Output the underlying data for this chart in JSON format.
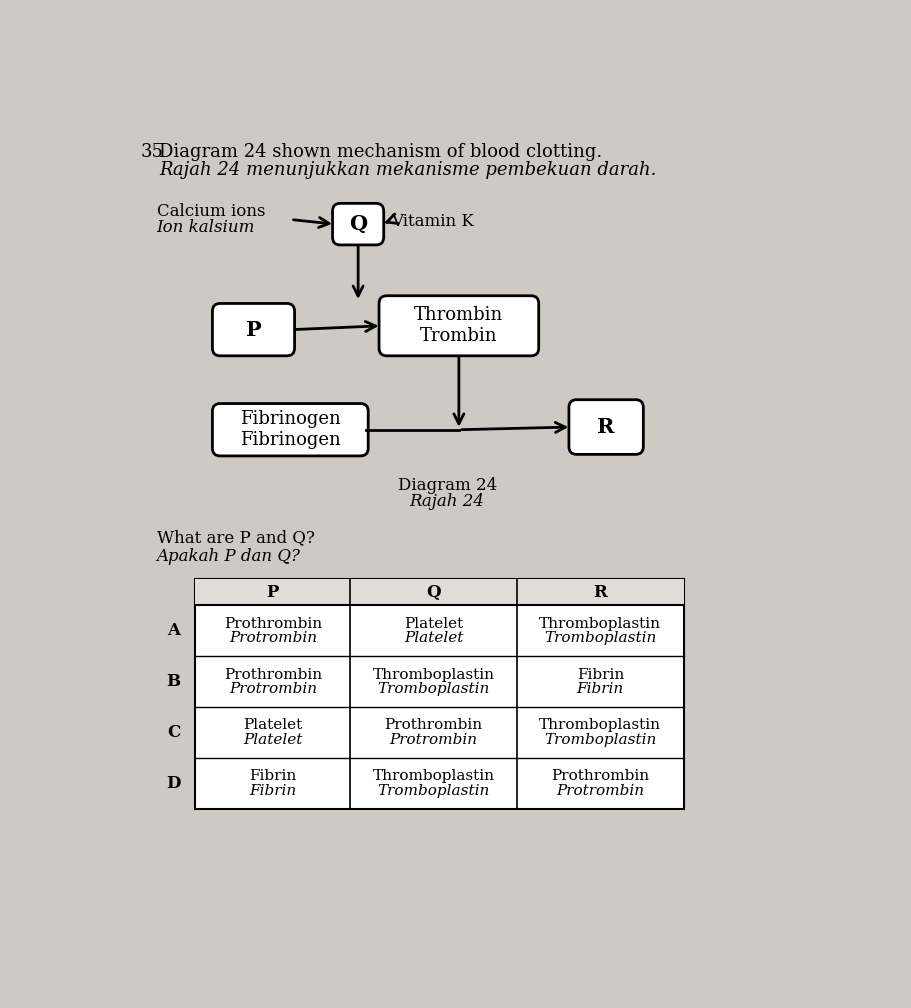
{
  "bg_color": "#cccac3",
  "title_number": "35",
  "title_line1": "Diagram 24 shown mechanism of blood clotting.",
  "title_line2": "Rajah 24 menunjukkan mekanisme pembekuan darah.",
  "question_line1": "What are P and Q?",
  "question_line2": "Apakah P dan Q?",
  "diagram_label_line1": "Diagram 24",
  "diagram_label_line2": "Rajah 24",
  "box_Q_label": "Q",
  "box_P_label": "P",
  "box_thrombin_line1": "Thrombin",
  "box_thrombin_line2": "Trombin",
  "box_fibrinogen_line1": "Fibrinogen",
  "box_fibrinogen_line2": "Fibrinogen",
  "box_R_label": "R",
  "label_calcium_line1": "Calcium ions",
  "label_calcium_line2": "Ion kalsium",
  "label_vitaminK": "Vitamin K",
  "table_headers": [
    "P",
    "Q",
    "R"
  ],
  "table_rows": [
    [
      "A",
      "Prothrombin\nProtrombin",
      "Platelet\nPlatelet",
      "Thromboplastin\nTromboplastin"
    ],
    [
      "B",
      "Prothrombin\nProtrombin",
      "Thromboplastin\nTromboplastin",
      "Fibrin\nFibrin"
    ],
    [
      "C",
      "Platelet\nPlatelet",
      "Prothrombin\nProtrombin",
      "Thromboplastin\nTromboplastin"
    ],
    [
      "D",
      "Fibrin\nFibrin",
      "Thromboplastin\nTromboplastin",
      "Prothrombin\nProtrombin"
    ]
  ]
}
